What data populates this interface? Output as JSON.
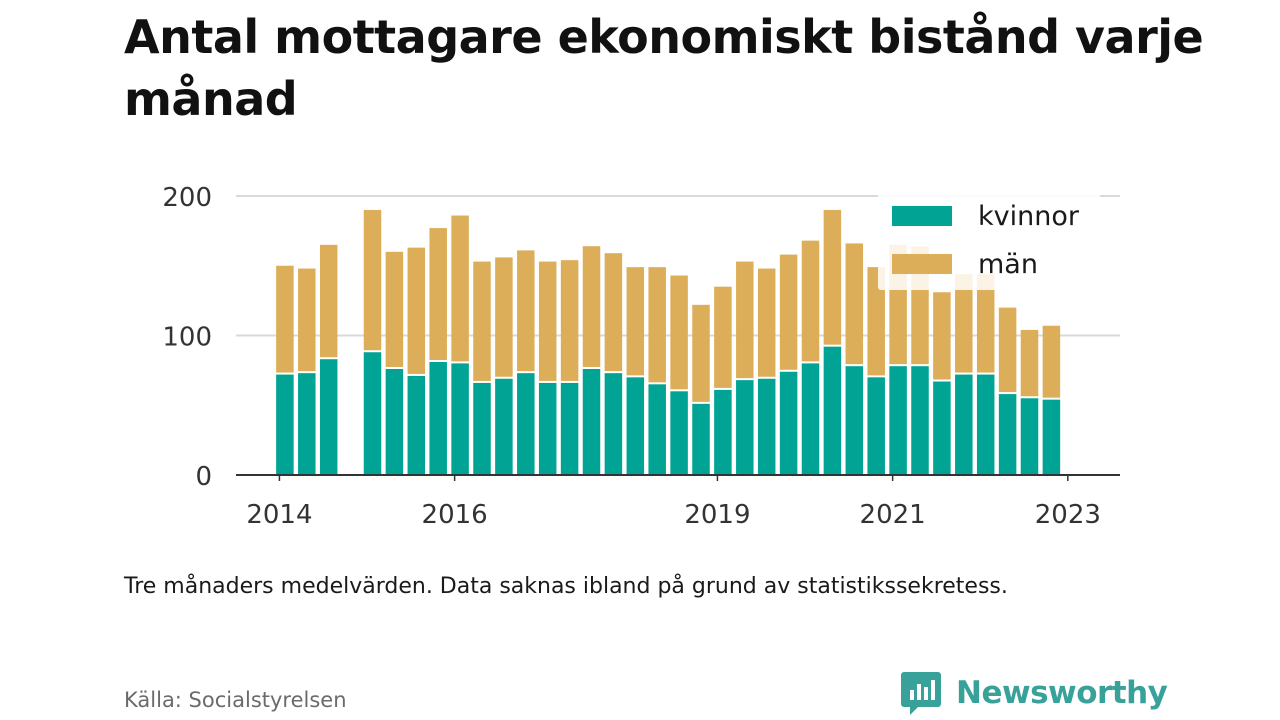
{
  "title": "Antal mottagare ekonomiskt bistånd varje månad",
  "note": "Tre månaders medelvärden. Data saknas ibland på grund av statistikssekretess.",
  "source": "Källa: Socialstyrelsen",
  "brand": {
    "name": "Newsworthy",
    "icon": "bar-chart-speech-bubble-icon"
  },
  "colors": {
    "kvinnor": "#00a394",
    "man": "#dcae5a",
    "grid": "#d9d9d9",
    "axis": "#333333",
    "brand": "#38a19a"
  },
  "chart_data": {
    "type": "bar",
    "stacked": true,
    "title": "Antal mottagare ekonomiskt bistånd varje månad",
    "xlabel": "",
    "ylabel": "",
    "ylim": [
      0,
      200
    ],
    "yticks": [
      0,
      100,
      200
    ],
    "xticks": [
      "2014",
      "2016",
      "2019",
      "2021",
      "2023"
    ],
    "grid": true,
    "legend_position": "top-right",
    "categories": [
      "2014 Q2",
      "2014 Q3",
      "2014 Q4",
      "2015 Q1",
      "2015 Q2",
      "2015 Q3",
      "2015 Q4",
      "2016 Q1",
      "2016 Q2",
      "2016 Q3",
      "2016 Q4",
      "2017 Q1",
      "2017 Q2",
      "2017 Q3",
      "2017 Q4",
      "2018 Q1",
      "2018 Q2",
      "2018 Q3",
      "2018 Q4",
      "2019 Q1",
      "2019 Q2",
      "2019 Q3",
      "2019 Q4",
      "2020 Q1",
      "2020 Q2",
      "2020 Q3",
      "2020 Q4",
      "2021 Q1",
      "2021 Q2",
      "2021 Q3",
      "2021 Q4",
      "2022 Q1",
      "2022 Q2",
      "2022 Q3",
      "2022 Q4",
      "2023 Q1"
    ],
    "series": [
      {
        "name": "kvinnor",
        "color": "#00a394",
        "values": [
          72,
          73,
          83,
          null,
          88,
          76,
          71,
          81,
          80,
          66,
          69,
          73,
          66,
          66,
          76,
          73,
          70,
          65,
          60,
          51,
          61,
          68,
          69,
          74,
          80,
          92,
          78,
          70,
          78,
          78,
          67,
          72,
          72,
          58,
          55,
          54
        ]
      },
      {
        "name": "män",
        "color": "#dcae5a",
        "values": [
          78,
          75,
          82,
          null,
          102,
          84,
          92,
          96,
          106,
          87,
          87,
          88,
          87,
          88,
          88,
          86,
          79,
          84,
          83,
          71,
          74,
          85,
          79,
          84,
          88,
          98,
          88,
          79,
          87,
          86,
          64,
          72,
          72,
          62,
          49,
          53
        ]
      }
    ]
  }
}
